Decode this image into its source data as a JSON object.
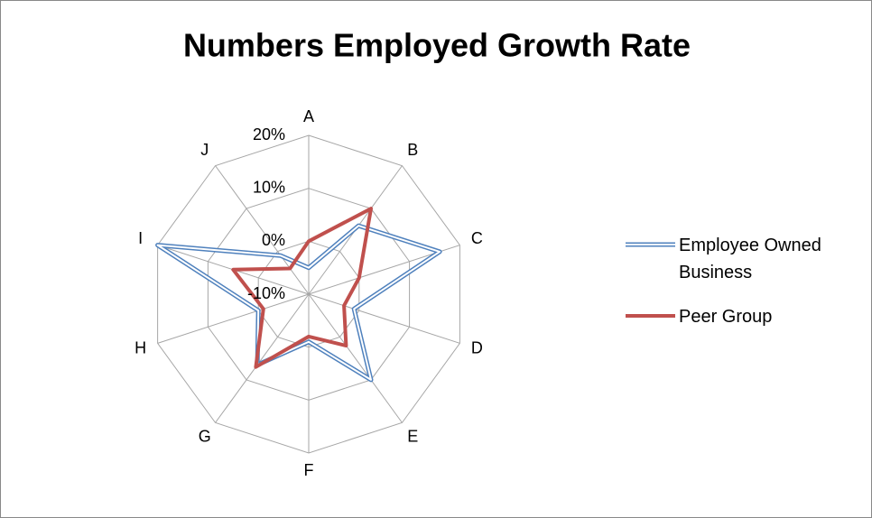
{
  "chart_data": {
    "type": "radar",
    "title": "Numbers Employed Growth Rate",
    "categories": [
      "A",
      "B",
      "C",
      "D",
      "E",
      "F",
      "G",
      "H",
      "I",
      "J"
    ],
    "series": [
      {
        "name": "Employee Owned Business",
        "color": "#4f81bd",
        "values": [
          -5,
          6,
          16,
          -1,
          10,
          -1,
          6.5,
          0,
          20,
          -1
        ]
      },
      {
        "name": "Peer Group",
        "color": "#c0504d",
        "values": [
          0,
          10,
          0,
          -3,
          2,
          -2,
          7,
          -1,
          5,
          -4
        ]
      }
    ],
    "ylim": [
      -10,
      20
    ],
    "yticks": [
      {
        "value": -10,
        "label": "-10%"
      },
      {
        "value": 0,
        "label": "0%"
      },
      {
        "value": 10,
        "label": "10%"
      },
      {
        "value": 20,
        "label": "20%"
      }
    ],
    "grid": true,
    "legend": "right"
  }
}
